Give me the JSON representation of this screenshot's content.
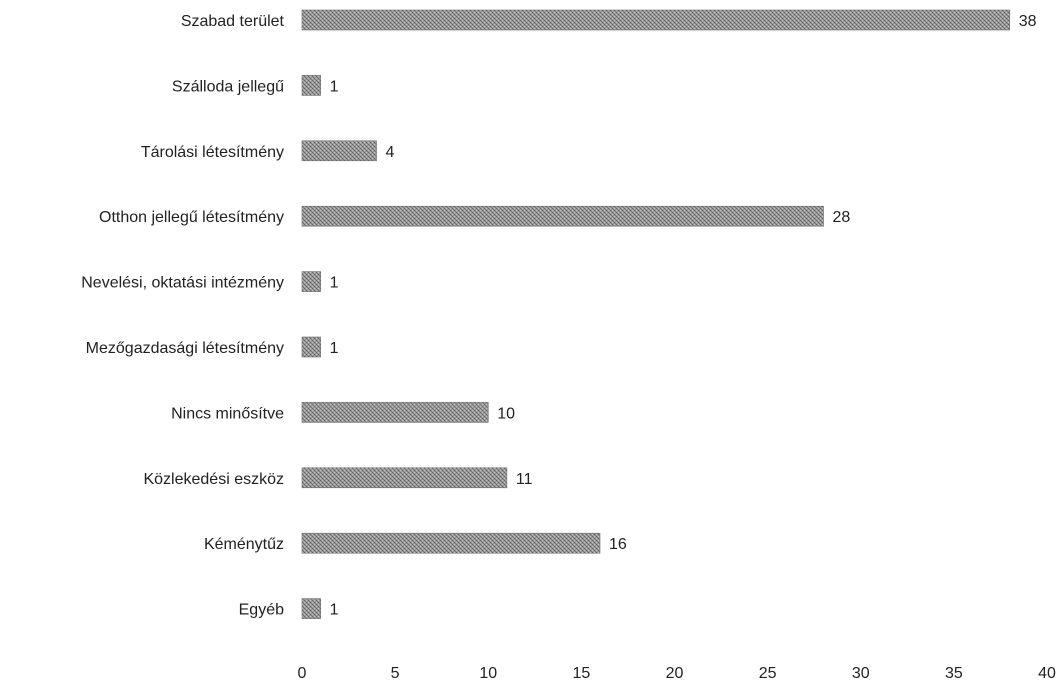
{
  "chart_data": {
    "type": "bar",
    "orientation": "horizontal",
    "categories": [
      "Szabad terület",
      "Szálloda jellegű",
      "Tárolási létesítmény",
      "Otthon jellegű létesítmény",
      "Nevelési, oktatási intézmény",
      "Mezőgazdasági létesítmény",
      "Nincs minősítve",
      "Közlekedési eszköz",
      "Kéménytűz",
      "Egyéb"
    ],
    "values": [
      38,
      1,
      4,
      28,
      1,
      1,
      10,
      11,
      16,
      1
    ],
    "data_labels": [
      "38",
      "1",
      "4",
      "28",
      "1",
      "1",
      "10",
      "11",
      "16",
      "1"
    ],
    "title": "",
    "xlabel": "",
    "ylabel": "",
    "xlim": [
      0,
      40
    ],
    "x_ticks": [
      0,
      5,
      10,
      15,
      20,
      25,
      30,
      35,
      40
    ],
    "x_tick_labels": [
      "0",
      "5",
      "10",
      "15",
      "20",
      "25",
      "30",
      "35",
      "40"
    ],
    "grid": false,
    "legend": "none",
    "bar_color": "#8a8a8a"
  }
}
